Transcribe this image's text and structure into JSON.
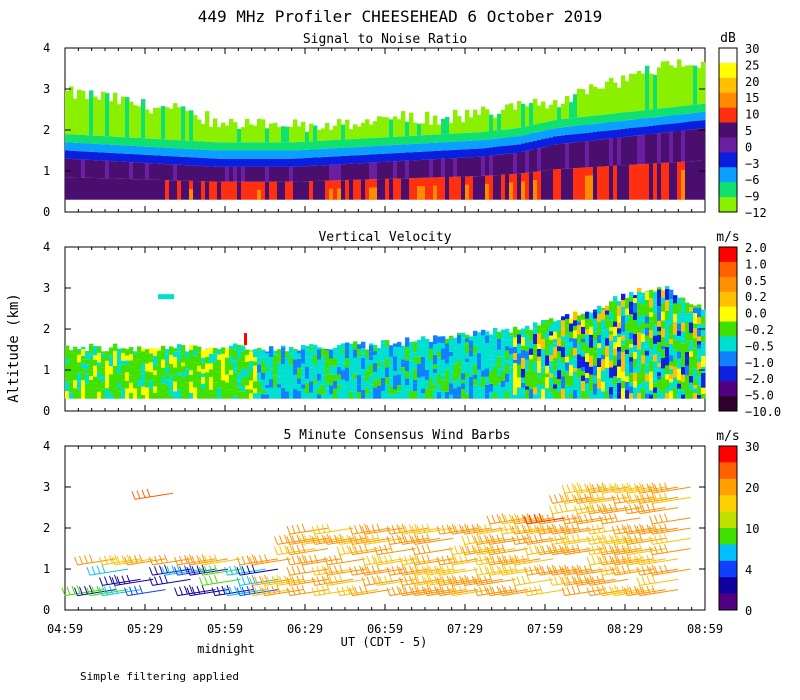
{
  "title": "449 MHz Profiler CHEESEHEAD  6 October 2019",
  "y_axis_label": "Altitude (km)",
  "x_axis_label": "UT  (CDT - 5)",
  "midnight_label": "midnight",
  "footnote": "Simple filtering applied",
  "chart_data": [
    {
      "type": "heatmap",
      "title": "Signal to Noise Ratio",
      "colorbar_unit": "dB",
      "colorbar_labels": [
        "30",
        "25",
        "20",
        "15",
        "10",
        "5",
        "0",
        "−3",
        "−6",
        "−9",
        "−12"
      ],
      "colorbar_colors": [
        "#ffffff",
        "#ffff00",
        "#ffc000",
        "#ff8c00",
        "#ff3010",
        "#4a0e6e",
        "#6a1fa0",
        "#0a1ee0",
        "#0aa0ff",
        "#10e070",
        "#8af000"
      ],
      "x_ticks": [
        "04:59",
        "05:29",
        "05:59",
        "06:29",
        "06:59",
        "07:29",
        "07:59",
        "08:29",
        "08:59"
      ],
      "x_range_hours": [
        4.983,
        8.983
      ],
      "y_ticks": [
        "0",
        "1",
        "2",
        "3",
        "4"
      ],
      "ylim": [
        0,
        4
      ],
      "xlabel": "",
      "ylabel": "Altitude (km)",
      "top_km": [
        2.9,
        2.8,
        2.6,
        2.5,
        2.2,
        2.2,
        2.1,
        2.1,
        2.2,
        2.3,
        2.3,
        2.4,
        2.6,
        2.7,
        3.0,
        3.3,
        3.6,
        3.7
      ],
      "noise_top_km": [
        1.55,
        1.5,
        1.45,
        1.4,
        1.35,
        1.35,
        1.35,
        1.4,
        1.45,
        1.5,
        1.55,
        1.6,
        1.7,
        1.9,
        2.0,
        2.1,
        2.2,
        2.3
      ]
    },
    {
      "type": "heatmap",
      "title": "Vertical Velocity",
      "colorbar_unit": "m/s",
      "colorbar_labels": [
        "2.0",
        "1.0",
        "0.5",
        "0.2",
        "0.0",
        "−0.2",
        "−0.5",
        "−1.0",
        "−2.0",
        "−5.0",
        "−10.0"
      ],
      "colorbar_colors": [
        "#ff0000",
        "#ff6000",
        "#ff9000",
        "#ffc000",
        "#ffff00",
        "#40e000",
        "#00e0d0",
        "#1080ff",
        "#1020e0",
        "#500080",
        "#300030"
      ],
      "x_ticks": [
        "04:59",
        "05:29",
        "05:59",
        "06:29",
        "06:59",
        "07:29",
        "07:59",
        "08:29",
        "08:59"
      ],
      "x_range_hours": [
        4.983,
        8.983
      ],
      "y_ticks": [
        "0",
        "1",
        "2",
        "3",
        "4"
      ],
      "ylim": [
        0,
        4
      ],
      "xlabel": "",
      "ylabel": "Altitude (km)",
      "top_km": [
        1.55,
        1.55,
        1.55,
        1.55,
        1.55,
        1.55,
        1.55,
        1.6,
        1.6,
        1.7,
        1.8,
        1.9,
        2.0,
        2.2,
        2.5,
        2.9,
        3.0,
        2.4
      ]
    },
    {
      "type": "scatter",
      "title": "5 Minute Consensus Wind Barbs",
      "colorbar_unit": "m/s",
      "colorbar_labels": [
        "30",
        "20",
        "10",
        "4",
        "0"
      ],
      "colorbar_colors": [
        "#ff0000",
        "#ff6000",
        "#ffa000",
        "#ffd000",
        "#c0e000",
        "#40e000",
        "#00c0ff",
        "#1040ff",
        "#1000a0",
        "#500080"
      ],
      "x_ticks": [
        "04:59",
        "05:29",
        "05:59",
        "06:29",
        "06:59",
        "07:29",
        "07:59",
        "08:29",
        "08:59"
      ],
      "x_range_hours": [
        4.983,
        8.983
      ],
      "y_ticks": [
        "0",
        "1",
        "2",
        "3",
        "4"
      ],
      "ylim": [
        0,
        4
      ],
      "xlabel": "UT  (CDT - 5)",
      "ylabel": "Altitude (km)"
    }
  ]
}
